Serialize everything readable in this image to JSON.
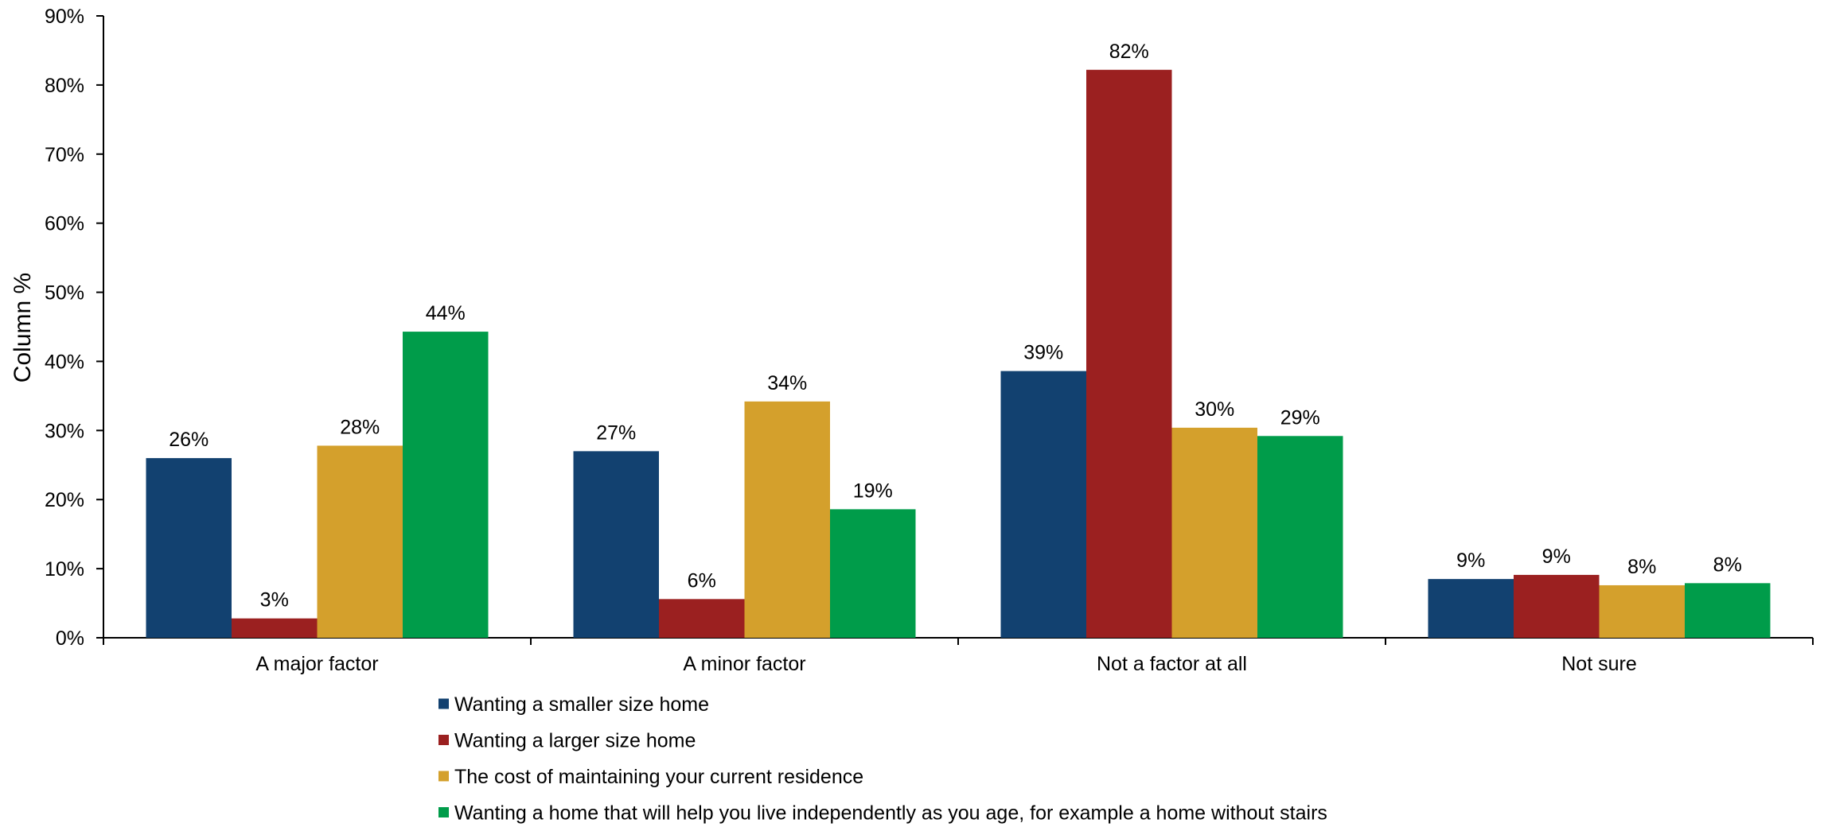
{
  "chart_data": {
    "type": "bar",
    "title": "",
    "xlabel": "",
    "ylabel": "Column %",
    "ylim": [
      0,
      90
    ],
    "y_ticks": [
      0,
      10,
      20,
      30,
      40,
      50,
      60,
      70,
      80,
      90
    ],
    "y_tick_format": "percent",
    "grid": false,
    "legend_position": "bottom",
    "categories": [
      "A major factor",
      "A minor factor",
      "Not a factor at all",
      "Not sure"
    ],
    "series": [
      {
        "name": "Wanting a smaller size home",
        "color": "#124170",
        "values": [
          26,
          27,
          39,
          9
        ],
        "plot_values": [
          26,
          27,
          38.6,
          8.5
        ]
      },
      {
        "name": "Wanting a larger size home",
        "color": "#9B2020",
        "values": [
          3,
          6,
          82,
          9
        ],
        "plot_values": [
          2.8,
          5.6,
          82.2,
          9.1
        ]
      },
      {
        "name": "The cost of maintaining your current residence",
        "color": "#D4A02C",
        "values": [
          28,
          34,
          30,
          8
        ],
        "plot_values": [
          27.8,
          34.2,
          30.4,
          7.6
        ]
      },
      {
        "name": "Wanting a home that will help you live independently as you age, for example a home without stairs",
        "color": "#009C4A",
        "values": [
          44,
          19,
          29,
          8
        ],
        "plot_values": [
          44.3,
          18.6,
          29.2,
          7.9
        ]
      }
    ]
  }
}
